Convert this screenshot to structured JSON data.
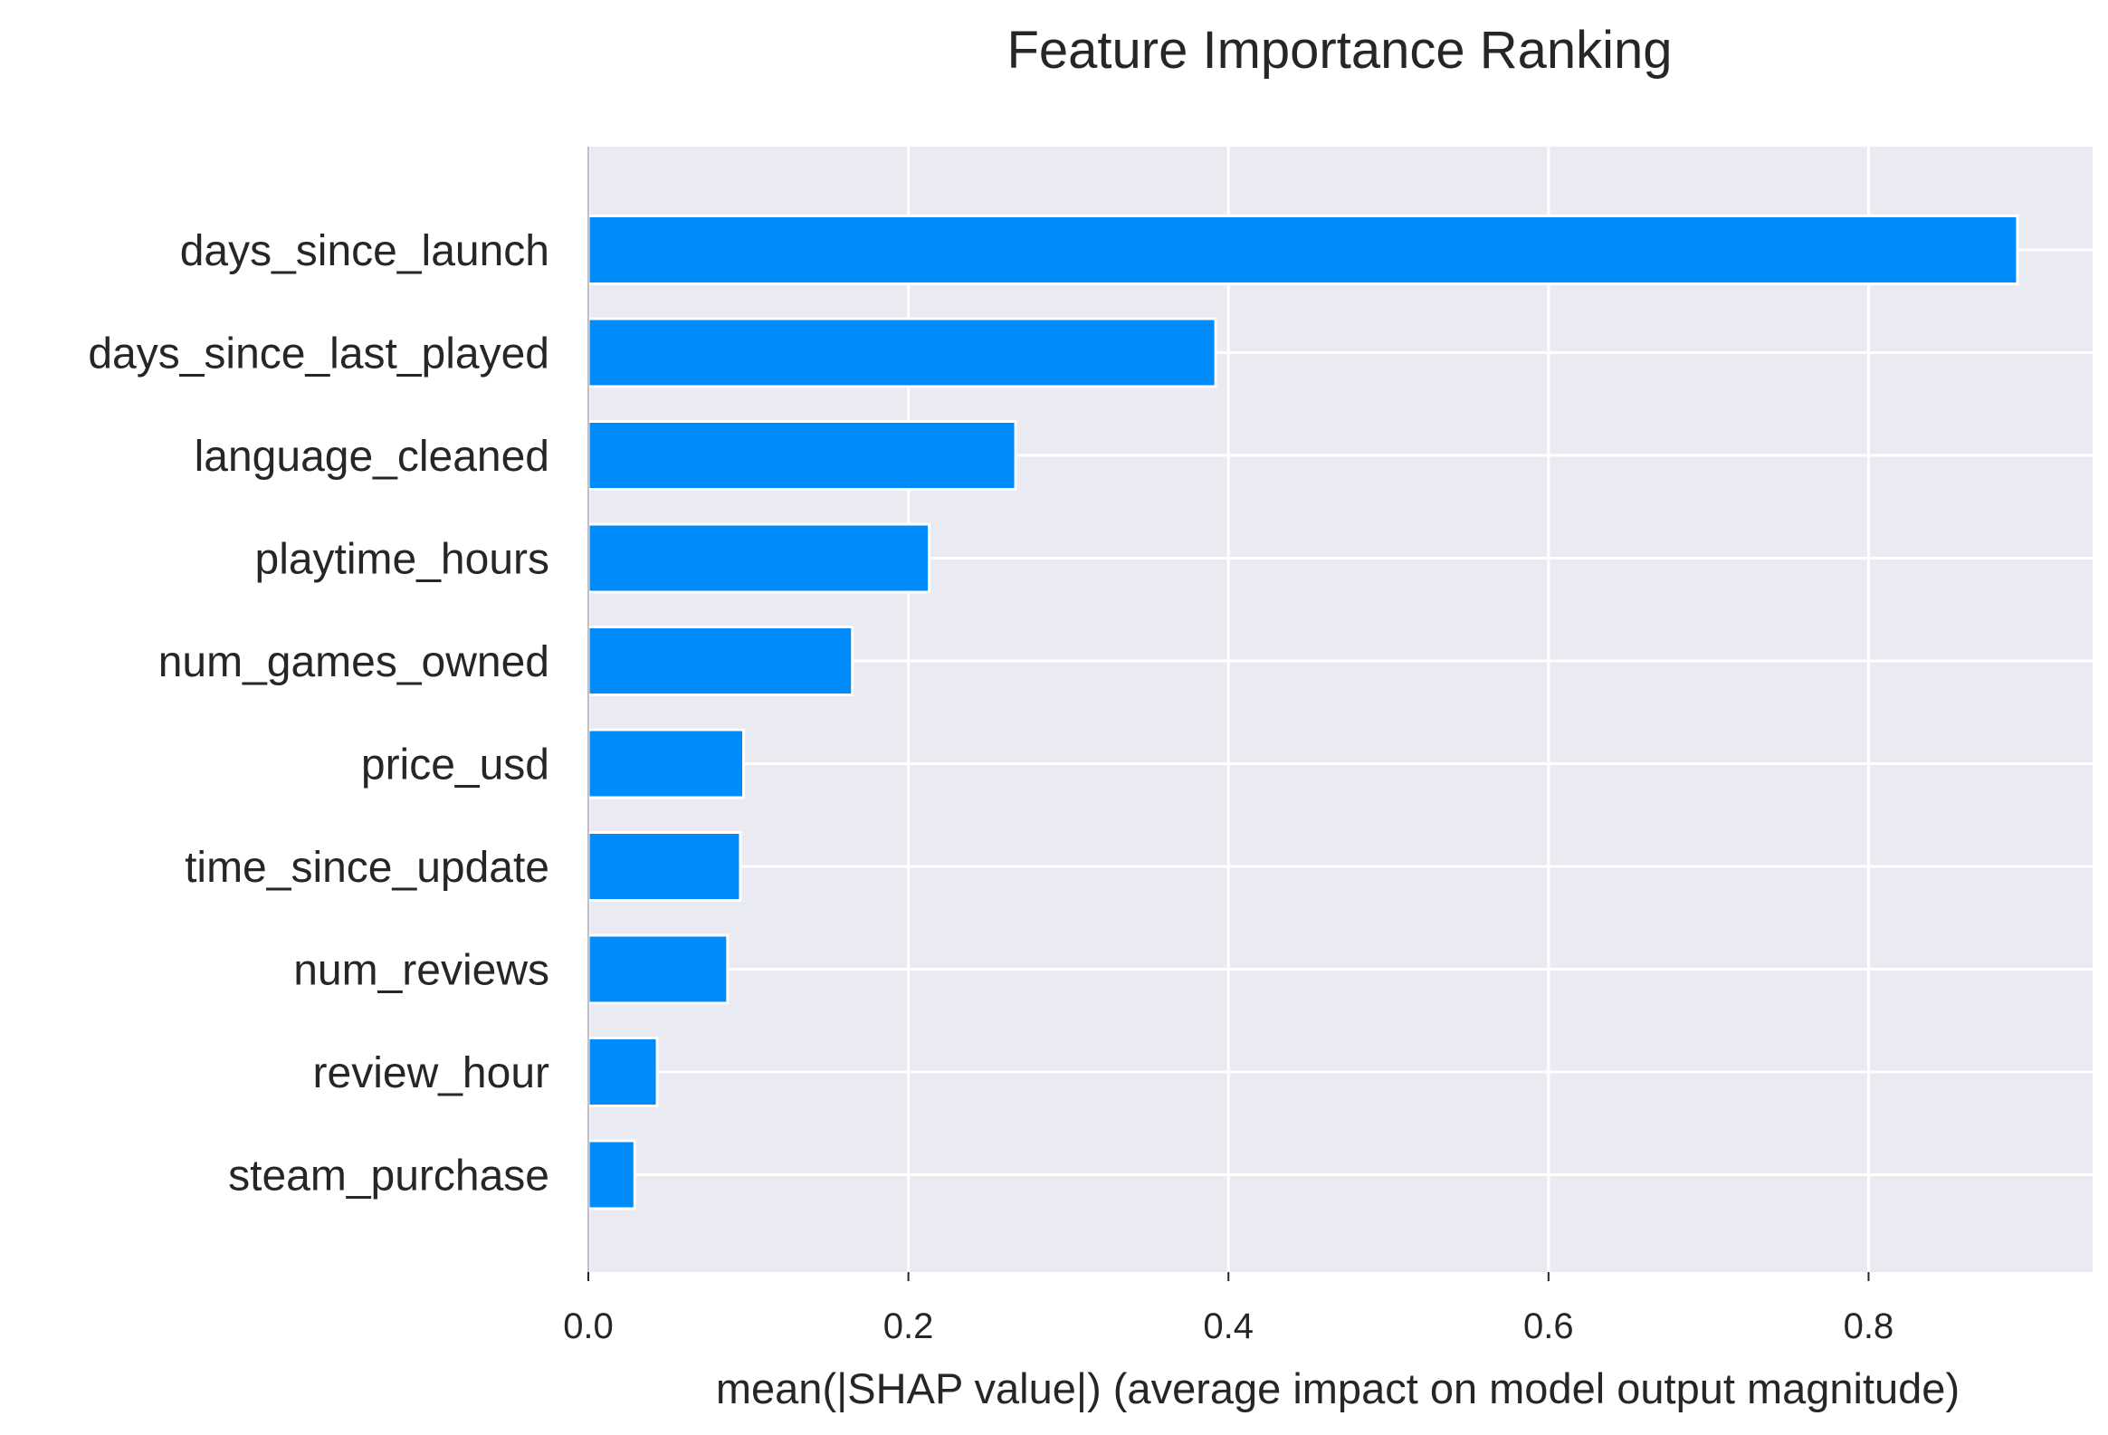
{
  "chart_data": {
    "type": "bar",
    "orientation": "horizontal",
    "title": "Feature Importance Ranking",
    "xlabel": "mean(|SHAP value|) (average impact on model output magnitude)",
    "ylabel": "",
    "categories": [
      "days_since_launch",
      "days_since_last_played",
      "language_cleaned",
      "playtime_hours",
      "num_games_owned",
      "price_usd",
      "time_since_update",
      "num_reviews",
      "review_hour",
      "steam_purchase"
    ],
    "values": [
      0.893,
      0.392,
      0.267,
      0.213,
      0.165,
      0.097,
      0.095,
      0.087,
      0.043,
      0.029
    ],
    "xlim": [
      0,
      0.94
    ],
    "xticks": [
      0.0,
      0.2,
      0.4,
      0.6,
      0.8
    ],
    "xtick_labels": [
      "0.0",
      "0.2",
      "0.4",
      "0.6",
      "0.8"
    ],
    "grid": true,
    "legend": "none",
    "colors": {
      "bar": "#008bfb",
      "plot_background": "#eaeaf2",
      "grid": "#ffffff",
      "text": "#262626",
      "axis_line": "#bfbfc8"
    }
  }
}
